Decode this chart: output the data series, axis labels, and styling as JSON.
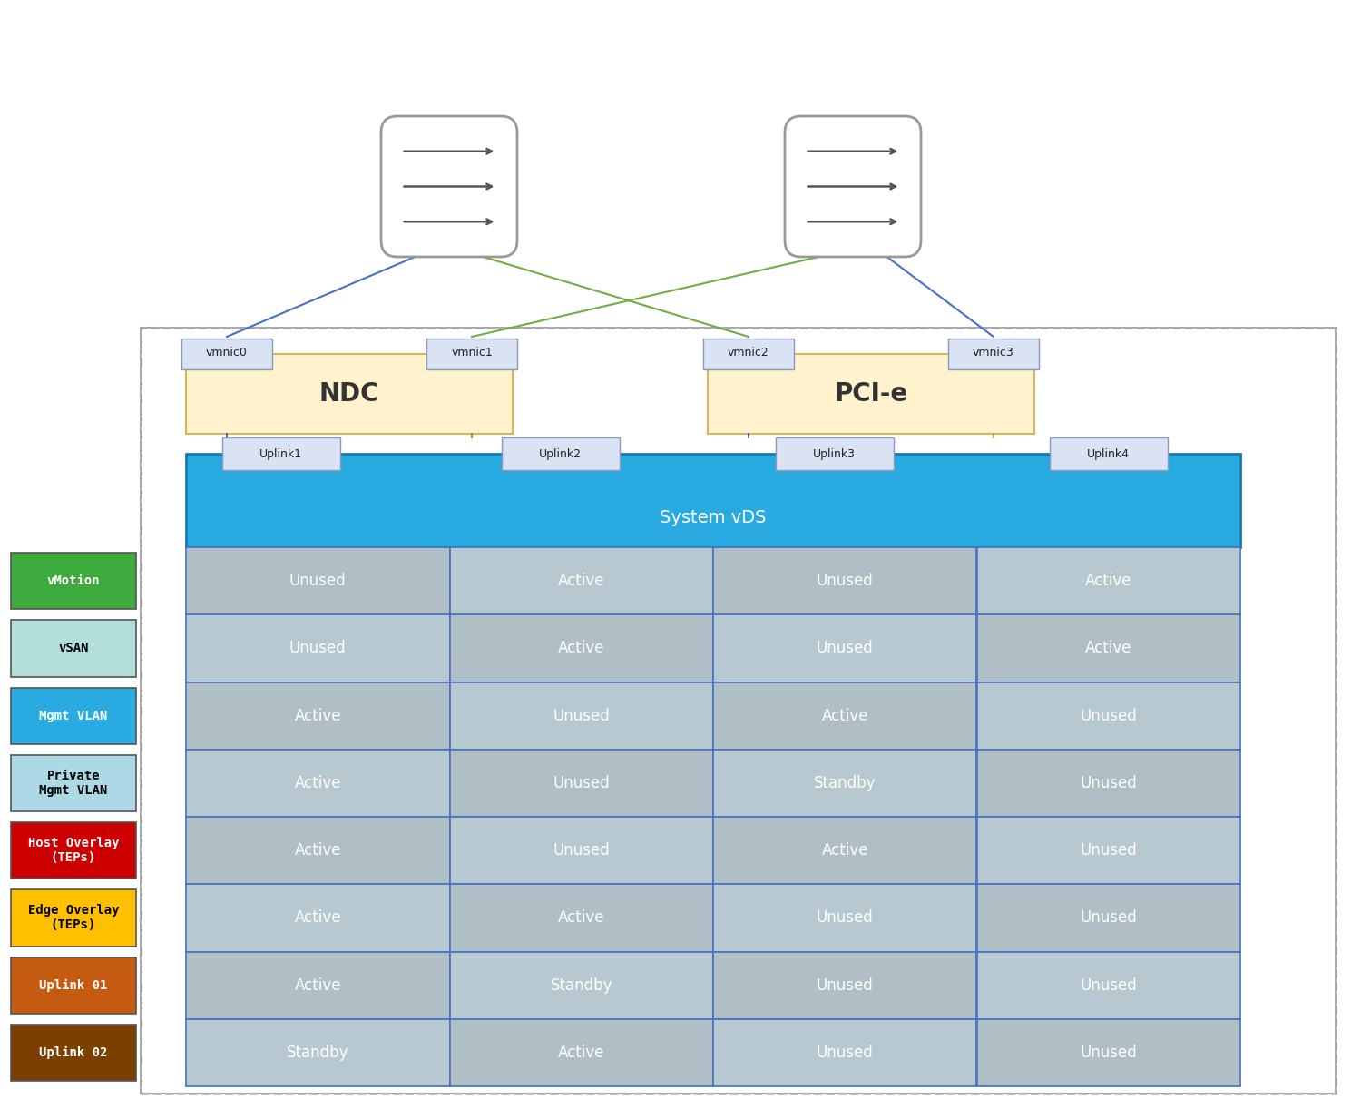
{
  "profile_labels": [
    "vMotion",
    "vSAN",
    "Mgmt VLAN",
    "Private\nMgmt VLAN",
    "Host Overlay\n(TEPs)",
    "Edge Overlay\n(TEPs)",
    "Uplink 01",
    "Uplink 02"
  ],
  "profile_colors": [
    "#3DAA3D",
    "#B2DFDB",
    "#29ABE2",
    "#ADD8E6",
    "#CC0000",
    "#FFC000",
    "#C55A11",
    "#7B3F00"
  ],
  "profile_text_colors": [
    "white",
    "black",
    "white",
    "black",
    "white",
    "black",
    "white",
    "white"
  ],
  "uplinks": [
    "Uplink1",
    "Uplink2",
    "Uplink3",
    "Uplink4"
  ],
  "vmnic_labels": [
    "vmnic0",
    "vmnic1",
    "vmnic2",
    "vmnic3"
  ],
  "ndc_label": "NDC",
  "pcie_label": "PCI-e",
  "vds_label": "System vDS",
  "table_data": [
    [
      "Unused",
      "Active",
      "Unused",
      "Active"
    ],
    [
      "Unused",
      "Active",
      "Unused",
      "Active"
    ],
    [
      "Active",
      "Unused",
      "Active",
      "Unused"
    ],
    [
      "Active",
      "Unused",
      "Standby",
      "Unused"
    ],
    [
      "Active",
      "Unused",
      "Active",
      "Unused"
    ],
    [
      "Active",
      "Active",
      "Unused",
      "Unused"
    ],
    [
      "Active",
      "Standby",
      "Unused",
      "Unused"
    ],
    [
      "Standby",
      "Active",
      "Unused",
      "Unused"
    ]
  ],
  "vds_color": "#29ABE2",
  "ndc_color": "#FFF2CC",
  "pcie_color": "#FFF2CC",
  "ndc_edge_color": "#D6B656",
  "table_border_color": "#4472C4",
  "outer_border_color": "#AAAAAA",
  "switch_icon_color": "#FFFFFF",
  "switch_border_color": "#999999",
  "blue_line_color": "#4472C4",
  "green_line_color": "#70AD47",
  "uplink_box_color": "#DAE3F3",
  "vmnic_box_color": "#DAE3F3",
  "cell_color_even": "#B0BEC5",
  "cell_color_odd": "#B8C8D0"
}
